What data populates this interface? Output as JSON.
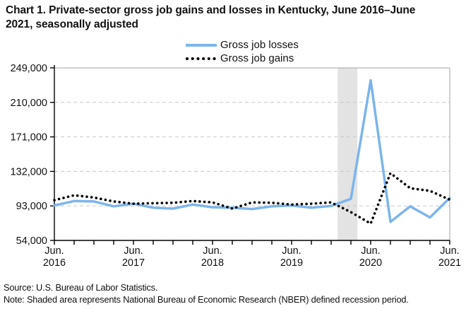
{
  "title": "Chart 1. Private-sector gross job gains and losses in Kentucky, June 2016–June 2021, seasonally adjusted",
  "legend": {
    "items": [
      {
        "label": "Gross job losses",
        "style": "solid",
        "color": "#7cb5ec"
      },
      {
        "label": "Gross job gains",
        "style": "dotted",
        "color": "#000000"
      }
    ]
  },
  "footer": {
    "source": "Source: U.S. Bureau of Labor Statistics.",
    "note": "Note: Shaded area represents National Bureau of Economic Research (NBER) defined recession period."
  },
  "colors": {
    "losses": "#7cb5ec",
    "gains": "#000000",
    "grid": "#c8c8c8",
    "frame": "#a3a3a3",
    "axis": "#000000",
    "band": "#e3e3e3",
    "text": "#111111"
  },
  "chart_data": {
    "type": "line",
    "title": "Chart 1. Private-sector gross job gains and losses in Kentucky, June 2016–June 2021, seasonally adjusted",
    "x_categories": [
      "Jun 2016",
      "Sep 2016",
      "Dec 2016",
      "Mar 2017",
      "Jun 2017",
      "Sep 2017",
      "Dec 2017",
      "Mar 2018",
      "Jun 2018",
      "Sep 2018",
      "Dec 2018",
      "Mar 2019",
      "Jun 2019",
      "Sep 2019",
      "Dec 2019",
      "Mar 2020",
      "Jun 2020",
      "Sep 2020",
      "Dec 2020",
      "Mar 2021",
      "Jun 2021"
    ],
    "series": [
      {
        "name": "Gross job losses",
        "style": "solid",
        "color": "#7cb5ec",
        "values": [
          93500,
          98500,
          98000,
          92500,
          95500,
          91000,
          90000,
          94500,
          91500,
          91000,
          89500,
          92500,
          93500,
          91000,
          93000,
          101000,
          235000,
          75000,
          92500,
          80000,
          102000
        ]
      },
      {
        "name": "Gross job gains",
        "style": "dotted",
        "color": "#000000",
        "values": [
          99500,
          105000,
          102500,
          98000,
          95500,
          96000,
          96500,
          98500,
          97000,
          90000,
          97000,
          96500,
          94500,
          95500,
          97000,
          86000,
          73000,
          130000,
          113000,
          110000,
          100000
        ]
      }
    ],
    "xlabel": "",
    "ylabel": "",
    "ylim": [
      54000,
      249000
    ],
    "yticks": [
      54000,
      93000,
      132000,
      171000,
      210000,
      249000
    ],
    "x_axis_labels": {
      "month": "Jun.",
      "years": [
        "2016",
        "2017",
        "2018",
        "2019",
        "2020",
        "2021"
      ],
      "label_every": 4
    },
    "recession_band": {
      "start_index": 14.33,
      "end_index": 15.33
    },
    "grid": "horizontal-dashed",
    "legend_position": "top-center"
  }
}
